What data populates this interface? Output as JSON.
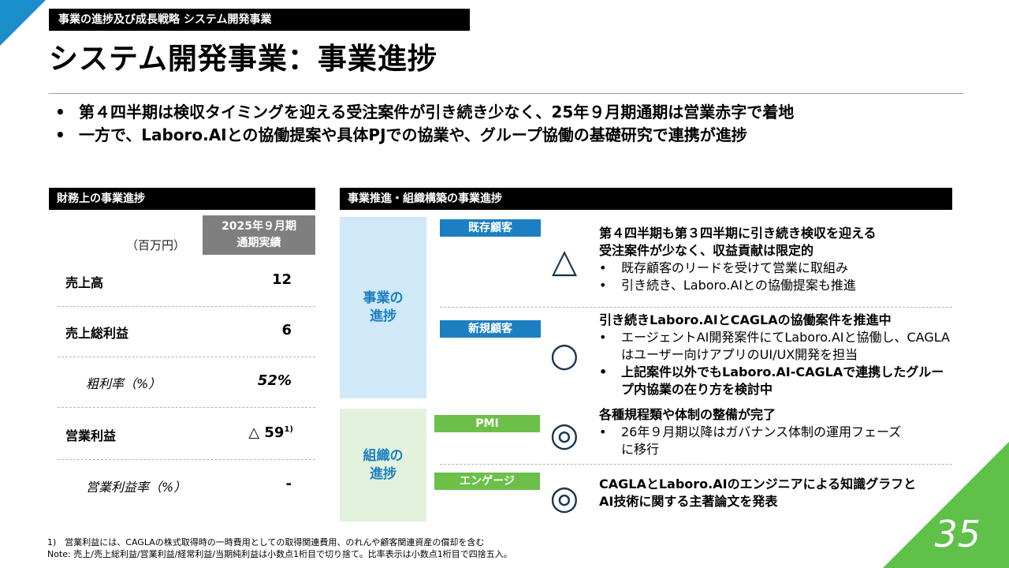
{
  "header": {
    "section_tag": "事業の進捗及び成長戦略 システム開発事業",
    "title": "システム開発事業：事業進捗"
  },
  "summary_bullets": [
    "第４四半期は検収タイミングを迎える受注案件が引き続き少なく、25年９月期通期は営業赤字で着地",
    "一方で、Laboro.AIとの協働提案や具体PJでの協業や、グループ協働の基礎研究で連携が進捗"
  ],
  "financial": {
    "band_title": "財務上の事業進捗",
    "unit": "（百万円）",
    "column_head": [
      "2025年９月期",
      "通期実績"
    ],
    "rows": [
      {
        "label": "売上高",
        "value": "12"
      },
      {
        "label": "売上総利益",
        "value": "6"
      },
      {
        "label": "粗利率（%）",
        "value": "52%"
      },
      {
        "label": "営業利益",
        "value": "△ 59",
        "note": "1)"
      },
      {
        "label": "営業利益率（%）",
        "value": "-"
      }
    ]
  },
  "progress": {
    "band_title": "事業推進・組織構築の事業進捗",
    "business_label": [
      "事業の",
      "進捗"
    ],
    "org_label": [
      "組織の",
      "進捗"
    ],
    "items": [
      {
        "chip": "既存顧客",
        "symbol": "△",
        "heading": [
          "第４四半期も第３四半期に引き続き検収を迎える",
          "受注案件が少なく、収益貢献は限定的"
        ],
        "bullets": [
          "既存顧客のリードを受けて営業に取組み",
          "引き続き、Laboro.AIとの協働提案も推進"
        ]
      },
      {
        "chip": "新規顧客",
        "symbol": "○",
        "heading": [
          "引き続きLaboro.AIとCAGLAの協働案件を推進中"
        ],
        "bullets": [
          "エージェントAI開発案件にてLaboro.AIと協働し、CAGLAはユーザー向けアプリのUI/UX開発を担当",
          "上記案件以外でもLaboro.AI-CAGLAで連携したグループ内協業の在り方を検討中"
        ]
      },
      {
        "chip": "PMI",
        "symbol": "◎",
        "heading": [
          "各種規程類や体制の整備が完了"
        ],
        "bullets": [
          "26年９月期以降はガバナンス体制の運用フェーズに移行"
        ]
      },
      {
        "chip": "エンゲージ",
        "symbol": "◎",
        "heading": [
          "CAGLAとLaboro.AIのエンジニアによる知識グラフと",
          "AI技術に関する主著論文を発表"
        ],
        "bullets": []
      }
    ]
  },
  "footnotes": [
    "1)　営業利益には、CAGLAの株式取得時の一時費用としての取得関連費用、のれんや顧客関連資産の償却を含む",
    "Note: 売上/売上総利益/営業利益/経常利益/当期純利益は小数点1桁目で切り捨て。比率表示は小数点1桁目で四捨五入。"
  ],
  "page_number": "35",
  "colors": {
    "accent_blue": "#1b7fc1",
    "accent_green": "#6cc04a",
    "light_blue_bg": "#cfe9f8",
    "light_green_bg": "#e3f2dc"
  }
}
